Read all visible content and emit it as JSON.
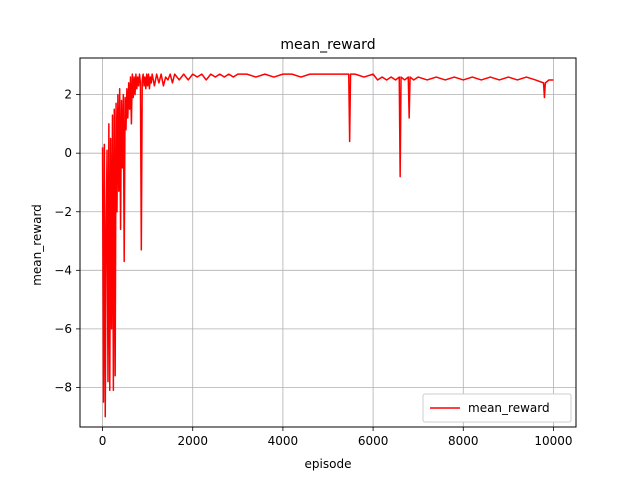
{
  "chart_data": {
    "type": "line",
    "title": "mean_reward",
    "xlabel": "episode",
    "ylabel": "mean_reward",
    "xlim": [
      -500,
      10500
    ],
    "ylim": [
      -9.35,
      3.25
    ],
    "xticks": [
      0,
      2000,
      4000,
      6000,
      8000,
      10000
    ],
    "xtick_labels": [
      "0",
      "2000",
      "4000",
      "6000",
      "8000",
      "10000"
    ],
    "yticks": [
      -8,
      -6,
      -4,
      -2,
      0,
      2
    ],
    "ytick_labels": [
      "−8",
      "−6",
      "−4",
      "−2",
      "0",
      "2"
    ],
    "grid": true,
    "legend": {
      "position": "lower-right",
      "entries": [
        "mean_reward"
      ]
    },
    "series": [
      {
        "name": "mean_reward",
        "color": "#ff0000",
        "x": [
          0,
          20,
          40,
          60,
          80,
          100,
          120,
          140,
          160,
          180,
          200,
          220,
          240,
          260,
          280,
          300,
          320,
          340,
          360,
          380,
          400,
          420,
          440,
          460,
          480,
          500,
          520,
          540,
          560,
          580,
          600,
          620,
          640,
          660,
          680,
          700,
          720,
          740,
          760,
          780,
          800,
          820,
          840,
          860,
          880,
          900,
          920,
          940,
          960,
          980,
          1000,
          1020,
          1040,
          1060,
          1080,
          1100,
          1150,
          1200,
          1250,
          1300,
          1350,
          1400,
          1450,
          1500,
          1550,
          1600,
          1700,
          1800,
          1900,
          2000,
          2100,
          2200,
          2300,
          2400,
          2500,
          2600,
          2700,
          2800,
          2900,
          3000,
          3200,
          3400,
          3600,
          3800,
          4000,
          4200,
          4400,
          4600,
          4800,
          5000,
          5200,
          5400,
          5460,
          5480,
          5500,
          5600,
          5800,
          6000,
          6100,
          6200,
          6300,
          6400,
          6500,
          6580,
          6600,
          6620,
          6700,
          6780,
          6800,
          6820,
          6900,
          7000,
          7200,
          7400,
          7600,
          7800,
          8000,
          8200,
          8400,
          8600,
          8800,
          9000,
          9200,
          9400,
          9600,
          9780,
          9800,
          9820,
          9900,
          10000
        ],
        "y": [
          0.2,
          -8.5,
          0.3,
          -9.0,
          -2.5,
          0.1,
          -7.8,
          1.0,
          -8.1,
          0.5,
          -6.0,
          1.3,
          -8.1,
          1.5,
          -7.6,
          1.7,
          -2.0,
          2.0,
          -1.3,
          2.2,
          -2.6,
          1.8,
          -0.5,
          2.0,
          -3.7,
          1.9,
          0.8,
          2.2,
          1.2,
          2.4,
          1.5,
          2.6,
          1.0,
          2.7,
          1.9,
          2.6,
          2.0,
          2.7,
          2.2,
          2.6,
          2.3,
          2.7,
          2.4,
          -3.3,
          2.5,
          2.7,
          2.3,
          2.6,
          2.2,
          2.7,
          2.3,
          2.7,
          2.2,
          2.6,
          2.4,
          2.7,
          2.3,
          2.7,
          2.4,
          2.7,
          2.3,
          2.6,
          2.5,
          2.7,
          2.4,
          2.7,
          2.5,
          2.7,
          2.5,
          2.7,
          2.6,
          2.7,
          2.5,
          2.7,
          2.6,
          2.7,
          2.6,
          2.7,
          2.6,
          2.7,
          2.7,
          2.6,
          2.7,
          2.6,
          2.7,
          2.7,
          2.6,
          2.7,
          2.7,
          2.7,
          2.7,
          2.7,
          2.7,
          0.4,
          2.7,
          2.7,
          2.6,
          2.7,
          2.5,
          2.6,
          2.5,
          2.6,
          2.5,
          2.6,
          -0.8,
          2.6,
          2.5,
          2.6,
          1.2,
          2.6,
          2.5,
          2.6,
          2.5,
          2.6,
          2.5,
          2.6,
          2.5,
          2.6,
          2.5,
          2.6,
          2.5,
          2.6,
          2.5,
          2.6,
          2.5,
          2.4,
          1.9,
          2.4,
          2.5,
          2.5
        ]
      }
    ]
  }
}
